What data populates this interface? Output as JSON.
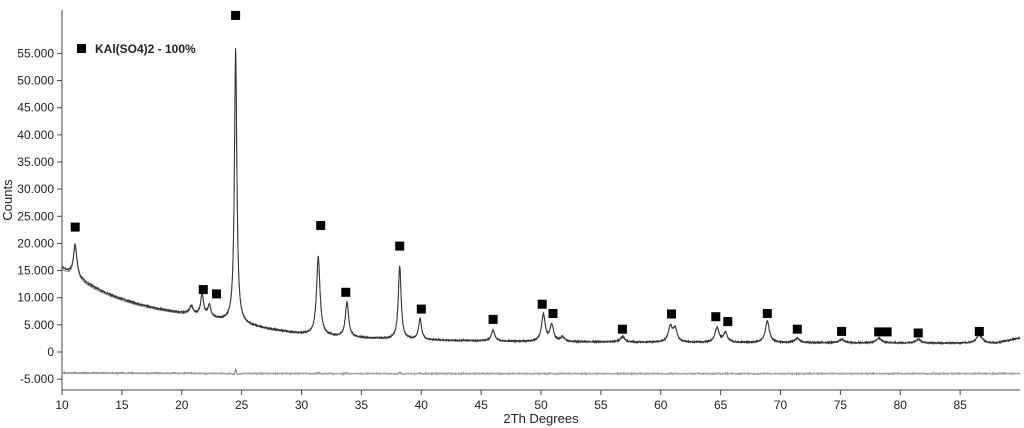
{
  "chart_data": {
    "type": "line",
    "xlabel": "2Th Degrees",
    "ylabel": "Counts",
    "xlim": [
      10,
      90
    ],
    "ylim": [
      -7000,
      63000
    ],
    "x_ticks": [
      10,
      15,
      20,
      25,
      30,
      35,
      40,
      45,
      50,
      55,
      60,
      65,
      70,
      75,
      80,
      85
    ],
    "x_tick_labels": [
      "10",
      "15",
      "20",
      "25",
      "30",
      "35",
      "40",
      "45",
      "50",
      "55",
      "60",
      "65",
      "70",
      "75",
      "80",
      "85"
    ],
    "y_ticks": [
      -5000,
      0,
      5000,
      10000,
      15000,
      20000,
      25000,
      30000,
      35000,
      40000,
      45000,
      50000,
      55000
    ],
    "y_tick_labels": [
      "-5.000",
      "0",
      "5.000",
      "10.000",
      "15.000",
      "20.000",
      "25.000",
      "30.000",
      "35.000",
      "40.000",
      "45.000",
      "50.000",
      "55.000"
    ],
    "grid": false,
    "legend": {
      "placement": "top-left",
      "entries": [
        {
          "label": "KAl(SO4)2 - 100%",
          "marker": "square",
          "color": "#000000"
        }
      ]
    },
    "peaks": [
      {
        "x": 11.1,
        "height": 6000,
        "width": 0.18
      },
      {
        "x": 20.8,
        "height": 1500,
        "width": 0.2
      },
      {
        "x": 21.7,
        "height": 4000,
        "width": 0.15
      },
      {
        "x": 22.3,
        "height": 2200,
        "width": 0.15
      },
      {
        "x": 24.5,
        "height": 50500,
        "width": 0.12
      },
      {
        "x": 31.4,
        "height": 14500,
        "width": 0.17
      },
      {
        "x": 33.8,
        "height": 6500,
        "width": 0.16
      },
      {
        "x": 38.2,
        "height": 13500,
        "width": 0.14
      },
      {
        "x": 39.9,
        "height": 3800,
        "width": 0.15
      },
      {
        "x": 46.0,
        "height": 2000,
        "width": 0.17
      },
      {
        "x": 50.2,
        "height": 5000,
        "width": 0.18
      },
      {
        "x": 50.9,
        "height": 3000,
        "width": 0.18
      },
      {
        "x": 51.8,
        "height": 800,
        "width": 0.2
      },
      {
        "x": 56.8,
        "height": 1000,
        "width": 0.22
      },
      {
        "x": 60.8,
        "height": 2800,
        "width": 0.2
      },
      {
        "x": 61.2,
        "height": 2400,
        "width": 0.2
      },
      {
        "x": 64.7,
        "height": 2700,
        "width": 0.2
      },
      {
        "x": 65.4,
        "height": 1700,
        "width": 0.2
      },
      {
        "x": 68.9,
        "height": 4000,
        "width": 0.2
      },
      {
        "x": 71.4,
        "height": 800,
        "width": 0.25
      },
      {
        "x": 75.1,
        "height": 600,
        "width": 0.25
      },
      {
        "x": 78.2,
        "height": 900,
        "width": 0.25
      },
      {
        "x": 81.5,
        "height": 700,
        "width": 0.25
      },
      {
        "x": 86.6,
        "height": 1500,
        "width": 0.3
      }
    ],
    "reference_markers": [
      {
        "x": 11.1,
        "y": 23000
      },
      {
        "x": 21.8,
        "y": 11500
      },
      {
        "x": 22.9,
        "y": 10700
      },
      {
        "x": 24.5,
        "y": 62000
      },
      {
        "x": 31.6,
        "y": 23300
      },
      {
        "x": 33.7,
        "y": 11000
      },
      {
        "x": 38.2,
        "y": 19500
      },
      {
        "x": 40.0,
        "y": 7900
      },
      {
        "x": 46.0,
        "y": 6000
      },
      {
        "x": 50.1,
        "y": 8800
      },
      {
        "x": 51.0,
        "y": 7100
      },
      {
        "x": 56.8,
        "y": 4200
      },
      {
        "x": 60.9,
        "y": 7000
      },
      {
        "x": 64.6,
        "y": 6500
      },
      {
        "x": 65.6,
        "y": 5600
      },
      {
        "x": 68.9,
        "y": 7100
      },
      {
        "x": 71.4,
        "y": 4200
      },
      {
        "x": 75.1,
        "y": 3800
      },
      {
        "x": 78.2,
        "y": 3700
      },
      {
        "x": 78.9,
        "y": 3700
      },
      {
        "x": 81.5,
        "y": 3500
      },
      {
        "x": 86.6,
        "y": 3800
      }
    ],
    "difference_offset": -4000,
    "colors": {
      "observed": "#333333",
      "calculated": "#888888",
      "difference": "#777777",
      "marker": "#000000",
      "axis": "#444444"
    }
  }
}
